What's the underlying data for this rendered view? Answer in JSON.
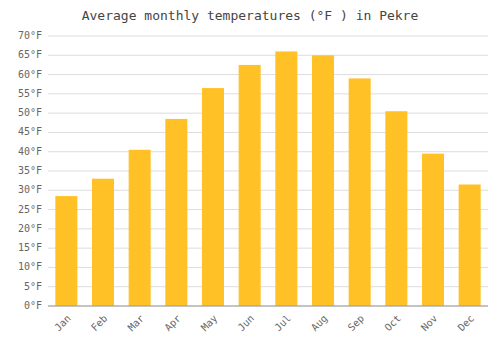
{
  "chart_data": {
    "type": "bar",
    "title": "Average monthly temperatures (°F ) in Pekre",
    "categories": [
      "Jan",
      "Feb",
      "Mar",
      "Apr",
      "May",
      "Jun",
      "Jul",
      "Aug",
      "Sep",
      "Oct",
      "Nov",
      "Dec"
    ],
    "values": [
      28.5,
      33.0,
      40.5,
      48.5,
      56.5,
      62.5,
      66.0,
      65.0,
      59.0,
      50.5,
      39.5,
      31.5
    ],
    "color": "#FFC125",
    "ylim": [
      0,
      70
    ],
    "yticks": [
      {
        "value": 0,
        "label": "0°F"
      },
      {
        "value": 5,
        "label": "5°F"
      },
      {
        "value": 10,
        "label": "10°F"
      },
      {
        "value": 15,
        "label": "15°F"
      },
      {
        "value": 20,
        "label": "20°F"
      },
      {
        "value": 25,
        "label": "25°F"
      },
      {
        "value": 30,
        "label": "30°F"
      },
      {
        "value": 35,
        "label": "35°F"
      },
      {
        "value": 40,
        "label": "40°F"
      },
      {
        "value": 45,
        "label": "45°F"
      },
      {
        "value": 50,
        "label": "50°F"
      },
      {
        "value": 55,
        "label": "55°F"
      },
      {
        "value": 60,
        "label": "60°F"
      },
      {
        "value": 65,
        "label": "65°F"
      },
      {
        "value": 70,
        "label": "70°F"
      }
    ],
    "grid": true
  }
}
